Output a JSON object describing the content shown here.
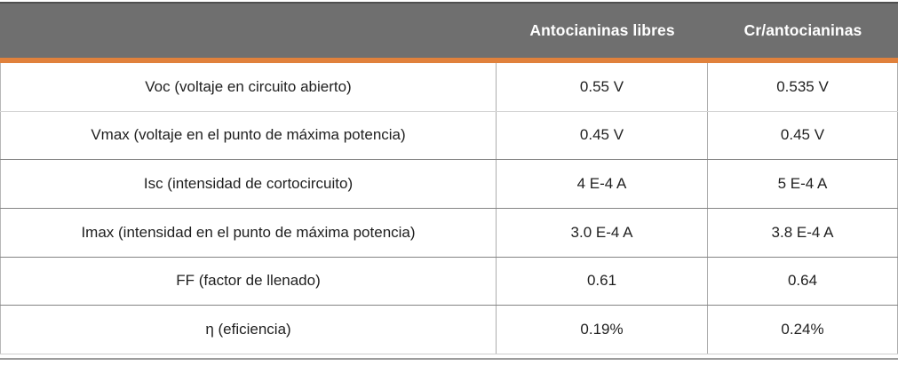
{
  "table": {
    "header": {
      "param_label": "",
      "col1": "Antocianinas libres",
      "col2": "Cr/antocianinas"
    },
    "rows": [
      {
        "label": "Voc (voltaje en circuito abierto)",
        "col1": "0.55 V",
        "col2": "0.535 V"
      },
      {
        "label": "Vmax (voltaje en el punto de máxima potencia)",
        "col1": "0.45 V",
        "col2": "0.45 V"
      },
      {
        "label": "Isc (intensidad de cortocircuito)",
        "col1": "4 E-4 A",
        "col2": "5 E-4 A"
      },
      {
        "label": "Imax (intensidad en el punto de máxima potencia)",
        "col1": "3.0 E-4 A",
        "col2": "3.8 E-4 A"
      },
      {
        "label": "FF (factor de llenado)",
        "col1": "0.61",
        "col2": "0.64"
      },
      {
        "label": "η (eficiencia)",
        "col1": "0.19%",
        "col2": "0.24%"
      }
    ],
    "colors": {
      "header_bg": "#6F6F6F",
      "header_top_border": "#4f4f4f",
      "accent_orange": "#E0813C",
      "row_border": "#848484",
      "column_border": "#adadad",
      "bottom_rule": "#9c9c9c"
    }
  },
  "chart_data": {
    "type": "table",
    "title": "",
    "columns": [
      "",
      "Antocianinas libres",
      "Cr/antocianinas"
    ],
    "rows": [
      [
        "Voc (voltaje en circuito abierto)",
        "0.55 V",
        "0.535 V"
      ],
      [
        "Vmax (voltaje en el punto de máxima potencia)",
        "0.45 V",
        "0.45 V"
      ],
      [
        "Isc (intensidad de cortocircuito)",
        "4 E-4 A",
        "5 E-4 A"
      ],
      [
        "Imax (intensidad en el punto de máxima potencia)",
        "3.0 E-4 A",
        "3.8 E-4 A"
      ],
      [
        "FF (factor de llenado)",
        "0.61",
        "0.64"
      ],
      [
        "η (eficiencia)",
        "0.19%",
        "0.24%"
      ]
    ],
    "series": [
      {
        "name": "Antocianinas libres",
        "values": [
          0.55,
          0.45,
          0.0004,
          0.0003,
          0.61,
          0.0019
        ]
      },
      {
        "name": "Cr/antocianinas",
        "values": [
          0.535,
          0.45,
          0.0005,
          0.00038,
          0.64,
          0.0024
        ]
      }
    ],
    "value_units": [
      "V",
      "V",
      "A",
      "A",
      "",
      "%"
    ]
  }
}
